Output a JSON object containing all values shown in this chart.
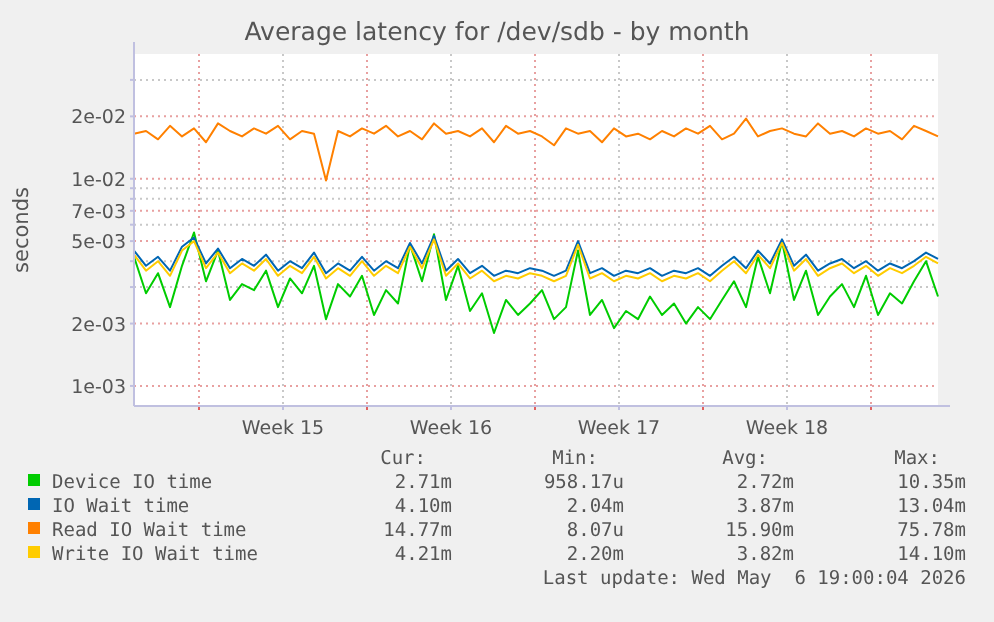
{
  "chart_data": {
    "type": "line",
    "title": "Average latency for /dev/sdb - by month",
    "ylabel": "seconds",
    "log": "y",
    "grid": true,
    "legend": "bottom",
    "line_style": "solid",
    "marker": "none",
    "x": [
      "2026-04-03T07:00",
      "2026-04-03T19:00",
      "2026-04-04T07:00",
      "2026-04-04T19:00",
      "2026-04-05T07:00",
      "2026-04-05T19:00",
      "2026-04-06T07:00",
      "2026-04-06T19:00",
      "2026-04-07T07:00",
      "2026-04-07T19:00",
      "2026-04-08T07:00",
      "2026-04-08T19:00",
      "2026-04-09T07:00",
      "2026-04-09T19:00",
      "2026-04-10T07:00",
      "2026-04-10T19:00",
      "2026-04-11T07:00",
      "2026-04-11T19:00",
      "2026-04-12T07:00",
      "2026-04-12T19:00",
      "2026-04-13T07:00",
      "2026-04-13T19:00",
      "2026-04-14T07:00",
      "2026-04-14T19:00",
      "2026-04-15T07:00",
      "2026-04-15T19:00",
      "2026-04-16T07:00",
      "2026-04-16T19:00",
      "2026-04-17T07:00",
      "2026-04-17T19:00",
      "2026-04-18T07:00",
      "2026-04-18T19:00",
      "2026-04-19T07:00",
      "2026-04-19T19:00",
      "2026-04-20T07:00",
      "2026-04-20T19:00",
      "2026-04-21T07:00",
      "2026-04-21T19:00",
      "2026-04-22T07:00",
      "2026-04-22T19:00",
      "2026-04-23T07:00",
      "2026-04-23T19:00",
      "2026-04-24T07:00",
      "2026-04-24T19:00",
      "2026-04-25T07:00",
      "2026-04-25T19:00",
      "2026-04-26T07:00",
      "2026-04-26T19:00",
      "2026-04-27T07:00",
      "2026-04-27T19:00",
      "2026-04-28T07:00",
      "2026-04-28T19:00",
      "2026-04-29T07:00",
      "2026-04-29T19:00",
      "2026-04-30T07:00",
      "2026-04-30T19:00",
      "2026-05-01T07:00",
      "2026-05-01T19:00",
      "2026-05-02T07:00",
      "2026-05-02T19:00",
      "2026-05-03T07:00",
      "2026-05-03T19:00",
      "2026-05-04T07:00",
      "2026-05-04T19:00",
      "2026-05-05T07:00",
      "2026-05-05T19:00",
      "2026-05-06T07:00",
      "2026-05-06T19:00"
    ],
    "xlim": [
      "2026-04-03T07:00",
      "2026-05-06T19:00"
    ],
    "xticks": [
      {
        "value": "2026-04-06",
        "label": null
      },
      {
        "value": "2026-04-09T12:00",
        "label": "Week 15"
      },
      {
        "value": "2026-04-13",
        "label": null
      },
      {
        "value": "2026-04-16T12:00",
        "label": "Week 16"
      },
      {
        "value": "2026-04-20",
        "label": null
      },
      {
        "value": "2026-04-23T12:00",
        "label": "Week 17"
      },
      {
        "value": "2026-04-27",
        "label": null
      },
      {
        "value": "2026-04-30T12:00",
        "label": "Week 18"
      },
      {
        "value": "2026-05-04",
        "label": null
      }
    ],
    "ylim": [
      0.0008,
      0.04
    ],
    "yticks": [
      {
        "value": 0.001,
        "label": "1e-03"
      },
      {
        "value": 0.002,
        "label": "2e-03"
      },
      {
        "value": 0.003,
        "label": null
      },
      {
        "value": 0.004,
        "label": null
      },
      {
        "value": 0.005,
        "label": "5e-03"
      },
      {
        "value": 0.006,
        "label": null
      },
      {
        "value": 0.007,
        "label": "7e-03"
      },
      {
        "value": 0.008,
        "label": null
      },
      {
        "value": 0.009,
        "label": null
      },
      {
        "value": 0.01,
        "label": "1e-02"
      },
      {
        "value": 0.02,
        "label": "2e-02"
      },
      {
        "value": 0.03,
        "label": null
      }
    ],
    "series": [
      {
        "name": "Device IO time",
        "color": "#00cc00",
        "values": [
          0.0042,
          0.0028,
          0.0035,
          0.0024,
          0.0038,
          0.0055,
          0.0032,
          0.0045,
          0.0026,
          0.0031,
          0.0029,
          0.0036,
          0.0024,
          0.0033,
          0.0028,
          0.0038,
          0.0021,
          0.0031,
          0.0027,
          0.0034,
          0.0022,
          0.0029,
          0.0025,
          0.0048,
          0.0032,
          0.0054,
          0.0026,
          0.0038,
          0.0023,
          0.0028,
          0.0018,
          0.0026,
          0.0022,
          0.0025,
          0.0029,
          0.0021,
          0.0024,
          0.0045,
          0.0022,
          0.0026,
          0.0019,
          0.0023,
          0.0021,
          0.0027,
          0.0022,
          0.0025,
          0.002,
          0.0024,
          0.0021,
          0.0026,
          0.0032,
          0.0024,
          0.0042,
          0.0028,
          0.005,
          0.0026,
          0.0036,
          0.0022,
          0.0027,
          0.0031,
          0.0024,
          0.0034,
          0.0022,
          0.0028,
          0.0025,
          0.0032,
          0.004,
          0.0027
        ]
      },
      {
        "name": "IO Wait time",
        "color": "#0066b3",
        "values": [
          0.0045,
          0.0038,
          0.0042,
          0.0036,
          0.0047,
          0.0052,
          0.0039,
          0.0046,
          0.0037,
          0.0041,
          0.0038,
          0.0043,
          0.0036,
          0.004,
          0.0037,
          0.0044,
          0.0035,
          0.0039,
          0.0036,
          0.0042,
          0.0036,
          0.004,
          0.0037,
          0.0049,
          0.0039,
          0.0053,
          0.0036,
          0.0041,
          0.0035,
          0.0038,
          0.0034,
          0.0036,
          0.0035,
          0.0037,
          0.0036,
          0.0034,
          0.0036,
          0.005,
          0.0035,
          0.0037,
          0.0034,
          0.0036,
          0.0035,
          0.0037,
          0.0034,
          0.0036,
          0.0035,
          0.0037,
          0.0034,
          0.0038,
          0.0042,
          0.0037,
          0.0045,
          0.0039,
          0.0051,
          0.0038,
          0.0043,
          0.0036,
          0.0039,
          0.0041,
          0.0037,
          0.004,
          0.0036,
          0.0039,
          0.0037,
          0.004,
          0.0044,
          0.0041
        ]
      },
      {
        "name": "Read IO Wait time",
        "color": "#ff8000",
        "values": [
          0.0165,
          0.017,
          0.0155,
          0.018,
          0.016,
          0.0175,
          0.015,
          0.0185,
          0.017,
          0.016,
          0.0175,
          0.0165,
          0.018,
          0.0155,
          0.017,
          0.0165,
          0.0098,
          0.017,
          0.016,
          0.0175,
          0.0165,
          0.018,
          0.016,
          0.017,
          0.0155,
          0.0185,
          0.0165,
          0.017,
          0.016,
          0.0175,
          0.015,
          0.018,
          0.0165,
          0.017,
          0.016,
          0.0145,
          0.0175,
          0.0165,
          0.017,
          0.015,
          0.0175,
          0.016,
          0.0165,
          0.0155,
          0.017,
          0.016,
          0.0175,
          0.0165,
          0.018,
          0.0155,
          0.0165,
          0.0195,
          0.016,
          0.017,
          0.0175,
          0.0165,
          0.016,
          0.0185,
          0.0165,
          0.017,
          0.016,
          0.0175,
          0.0165,
          0.017,
          0.0155,
          0.018,
          0.017,
          0.016
        ]
      },
      {
        "name": "Write IO Wait time",
        "color": "#ffcc00",
        "values": [
          0.0043,
          0.0036,
          0.004,
          0.0034,
          0.0045,
          0.005,
          0.0037,
          0.0044,
          0.0035,
          0.0039,
          0.0036,
          0.0041,
          0.0034,
          0.0038,
          0.0035,
          0.0042,
          0.0033,
          0.0037,
          0.0034,
          0.004,
          0.0034,
          0.0038,
          0.0035,
          0.0047,
          0.0037,
          0.0051,
          0.0034,
          0.0039,
          0.0033,
          0.0036,
          0.0032,
          0.0034,
          0.0033,
          0.0035,
          0.0034,
          0.0032,
          0.0034,
          0.0048,
          0.0033,
          0.0035,
          0.0032,
          0.0034,
          0.0033,
          0.0035,
          0.0032,
          0.0034,
          0.0033,
          0.0035,
          0.0032,
          0.0036,
          0.004,
          0.0035,
          0.0043,
          0.0037,
          0.0049,
          0.0036,
          0.0041,
          0.0034,
          0.0037,
          0.0039,
          0.0035,
          0.0038,
          0.0034,
          0.0037,
          0.0035,
          0.0038,
          0.0042,
          0.0039
        ]
      }
    ],
    "annotations": [
      "Cur:",
      "Min:",
      "Avg:",
      "Max:",
      "2.71m",
      "958.17u",
      "2.72m",
      "10.35m",
      "4.10m",
      "2.04m",
      "3.87m",
      "13.04m",
      "14.77m",
      "8.07u",
      "15.90m",
      "75.78m",
      "4.21m",
      "2.20m",
      "3.82m",
      "14.10m",
      "Last update: Wed May  6 19:00:04 2026"
    ]
  }
}
